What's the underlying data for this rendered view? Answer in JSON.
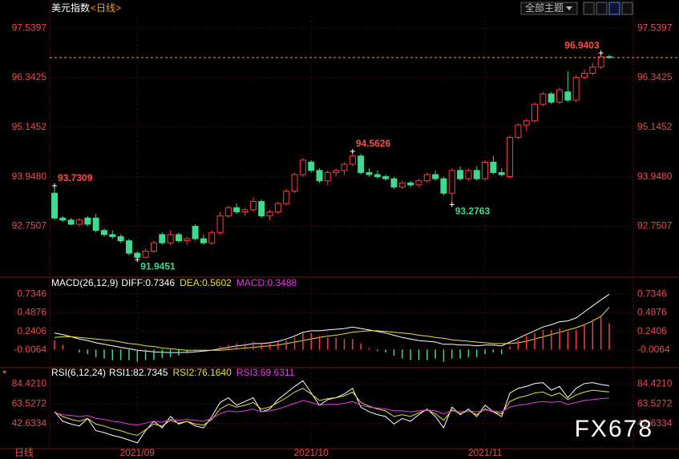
{
  "header": {
    "theme": "全部主题",
    "footer": "日线",
    "watermark": "FX678"
  },
  "chart_data": [
    {
      "type": "candlestick",
      "title": "美元指数",
      "subtitle": "<日线>",
      "up_color": "#ff3b3b",
      "down_color": "#3fd98f",
      "ylim": [
        91.54,
        97.95
      ],
      "yticks": [
        97.5397,
        96.3425,
        95.1452,
        {
          "value": 93.948,
          "label": "93.9480"
        },
        92.7507
      ],
      "grid": true,
      "xticks": [
        {
          "value": 10,
          "label": "2021/09"
        },
        {
          "value": 31,
          "label": "2021/10"
        },
        {
          "value": 52,
          "label": "2021/11"
        }
      ],
      "ohlc": [
        [
          93.55,
          93.7309,
          92.9,
          92.95
        ],
        [
          92.95,
          93.0,
          92.85,
          92.9
        ],
        [
          92.9,
          92.95,
          92.78,
          92.8
        ],
        [
          92.8,
          92.95,
          92.75,
          92.9
        ],
        [
          92.95,
          93.0,
          92.75,
          92.8
        ],
        [
          92.95,
          93.05,
          92.6,
          92.65
        ],
        [
          92.65,
          92.7,
          92.5,
          92.55
        ],
        [
          92.55,
          92.65,
          92.45,
          92.5
        ],
        [
          92.5,
          92.55,
          92.35,
          92.4
        ],
        [
          92.4,
          92.45,
          92.05,
          92.1
        ],
        [
          92.1,
          92.15,
          91.9451,
          92.0
        ],
        [
          92.0,
          92.2,
          91.98,
          92.15
        ],
        [
          92.15,
          92.4,
          92.1,
          92.35
        ],
        [
          92.55,
          92.6,
          92.3,
          92.35
        ],
        [
          92.35,
          92.65,
          92.3,
          92.55
        ],
        [
          92.55,
          92.6,
          92.35,
          92.4
        ],
        [
          92.4,
          92.5,
          92.3,
          92.45
        ],
        [
          92.75,
          92.8,
          92.4,
          92.45
        ],
        [
          92.45,
          92.55,
          92.3,
          92.35
        ],
        [
          92.35,
          92.65,
          92.3,
          92.6
        ],
        [
          92.6,
          93.1,
          92.55,
          93.0
        ],
        [
          93.0,
          93.25,
          92.95,
          93.2
        ],
        [
          93.2,
          93.3,
          93.05,
          93.1
        ],
        [
          93.1,
          93.2,
          93.0,
          93.15
        ],
        [
          93.15,
          93.45,
          93.1,
          93.35
        ],
        [
          93.35,
          93.4,
          92.95,
          93.0
        ],
        [
          93.0,
          93.15,
          92.9,
          93.1
        ],
        [
          93.1,
          93.35,
          93.05,
          93.3
        ],
        [
          93.3,
          93.65,
          93.25,
          93.6
        ],
        [
          93.6,
          94.05,
          93.55,
          94.0
        ],
        [
          94.0,
          94.4,
          93.95,
          94.35
        ],
        [
          94.3,
          94.35,
          94.05,
          94.1
        ],
        [
          94.1,
          94.15,
          93.8,
          93.85
        ],
        [
          93.85,
          94.1,
          93.75,
          94.05
        ],
        [
          94.05,
          94.15,
          93.95,
          94.1
        ],
        [
          94.1,
          94.3,
          94.0,
          94.25
        ],
        [
          94.25,
          94.5626,
          94.2,
          94.45
        ],
        [
          94.45,
          94.5,
          94.0,
          94.05
        ],
        [
          94.05,
          94.15,
          93.95,
          94.0
        ],
        [
          94.0,
          94.1,
          93.9,
          93.95
        ],
        [
          93.95,
          94.0,
          93.85,
          93.9
        ],
        [
          93.9,
          93.95,
          93.65,
          93.7
        ],
        [
          93.7,
          93.85,
          93.65,
          93.8
        ],
        [
          93.8,
          93.85,
          93.7,
          93.75
        ],
        [
          93.75,
          93.9,
          93.7,
          93.85
        ],
        [
          93.85,
          94.05,
          93.8,
          94.0
        ],
        [
          94.0,
          94.1,
          93.85,
          93.9
        ],
        [
          93.9,
          93.95,
          93.5,
          93.55
        ],
        [
          93.55,
          94.15,
          93.2763,
          94.1
        ],
        [
          94.1,
          94.2,
          93.85,
          93.9
        ],
        [
          93.9,
          94.15,
          93.85,
          94.1
        ],
        [
          94.1,
          94.2,
          93.85,
          93.9
        ],
        [
          93.9,
          94.35,
          93.85,
          94.3
        ],
        [
          94.3,
          94.45,
          94.0,
          94.05
        ],
        [
          94.05,
          94.15,
          93.95,
          94.0
        ],
        [
          93.95,
          94.95,
          93.9,
          94.9
        ],
        [
          94.9,
          95.25,
          94.85,
          95.2
        ],
        [
          95.2,
          95.35,
          95.05,
          95.3
        ],
        [
          95.3,
          95.75,
          95.25,
          95.7
        ],
        [
          95.7,
          96.0,
          95.65,
          95.95
        ],
        [
          95.95,
          96.0,
          95.7,
          95.75
        ],
        [
          95.75,
          96.1,
          95.7,
          96.05
        ],
        [
          96.0,
          96.5,
          95.75,
          95.8
        ],
        [
          95.8,
          96.4,
          95.75,
          96.35
        ],
        [
          96.35,
          96.55,
          96.3,
          96.45
        ],
        [
          96.45,
          96.7,
          96.4,
          96.6
        ],
        [
          96.6,
          96.9403,
          96.55,
          96.85
        ],
        [
          96.85,
          96.9,
          96.8,
          96.83
        ]
      ],
      "high_labels": [
        {
          "index": 0,
          "value": 93.7309
        },
        {
          "index": 36,
          "value": 94.5626
        },
        {
          "index": 66,
          "value": 96.9403
        }
      ],
      "low_labels": [
        {
          "index": 10,
          "value": 91.9451
        },
        {
          "index": 48,
          "value": 93.2763
        }
      ]
    },
    {
      "type": "line",
      "title": "MACD(26,12,9)",
      "ylim": [
        -0.23,
        0.94
      ],
      "yticks": [
        0.7346,
        0.4876,
        0.2406,
        -0.0064
      ],
      "series": [
        {
          "name": "DIFF:0.7346",
          "color": "#ffffff",
          "values": [
            0.22,
            0.2,
            0.17,
            0.14,
            0.12,
            0.09,
            0.07,
            0.05,
            0.03,
            0.01,
            -0.01,
            -0.02,
            -0.03,
            -0.035,
            -0.04,
            -0.04,
            -0.035,
            -0.03,
            -0.02,
            -0.01,
            0.01,
            0.03,
            0.05,
            0.06,
            0.08,
            0.08,
            0.09,
            0.11,
            0.14,
            0.18,
            0.23,
            0.25,
            0.25,
            0.26,
            0.27,
            0.28,
            0.3,
            0.28,
            0.26,
            0.24,
            0.22,
            0.19,
            0.16,
            0.14,
            0.12,
            0.11,
            0.1,
            0.07,
            0.07,
            0.06,
            0.06,
            0.05,
            0.06,
            0.06,
            0.05,
            0.1,
            0.15,
            0.2,
            0.25,
            0.3,
            0.33,
            0.37,
            0.38,
            0.42,
            0.5,
            0.58,
            0.66,
            0.7346
          ]
        },
        {
          "name": "DEA:0.5602",
          "color": "#e8e03a",
          "values": [
            0.16,
            0.17,
            0.17,
            0.16,
            0.15,
            0.14,
            0.13,
            0.12,
            0.1,
            0.08,
            0.07,
            0.05,
            0.04,
            0.02,
            0.01,
            0.0,
            -0.01,
            -0.01,
            -0.01,
            -0.01,
            -0.01,
            0.0,
            0.01,
            0.02,
            0.03,
            0.04,
            0.05,
            0.06,
            0.08,
            0.1,
            0.12,
            0.14,
            0.16,
            0.18,
            0.19,
            0.21,
            0.23,
            0.24,
            0.25,
            0.25,
            0.24,
            0.23,
            0.22,
            0.21,
            0.19,
            0.18,
            0.16,
            0.15,
            0.13,
            0.12,
            0.11,
            0.1,
            0.09,
            0.08,
            0.08,
            0.08,
            0.09,
            0.11,
            0.14,
            0.17,
            0.2,
            0.23,
            0.26,
            0.29,
            0.33,
            0.38,
            0.44,
            0.5602
          ]
        },
        {
          "name": "MACD:0.3488",
          "color": "#e040e0",
          "bar": true,
          "up_color": "#ff3b3b",
          "down_color": "#3fd98f",
          "values": [
            0.12,
            0.06,
            0,
            -0.04,
            -0.06,
            -0.1,
            -0.12,
            -0.14,
            -0.14,
            -0.14,
            -0.16,
            -0.14,
            -0.14,
            -0.11,
            -0.1,
            -0.08,
            -0.05,
            -0.04,
            -0.02,
            0,
            0.04,
            0.06,
            0.08,
            0.08,
            0.1,
            0.08,
            0.08,
            0.1,
            0.12,
            0.16,
            0.22,
            0.22,
            0.18,
            0.16,
            0.16,
            0.14,
            0.14,
            0.08,
            0.02,
            -0.02,
            -0.04,
            -0.08,
            -0.12,
            -0.14,
            -0.14,
            -0.14,
            -0.12,
            -0.16,
            -0.12,
            -0.12,
            -0.1,
            -0.1,
            -0.06,
            -0.04,
            -0.06,
            0.04,
            0.12,
            0.18,
            0.22,
            0.26,
            0.26,
            0.28,
            0.24,
            0.26,
            0.34,
            0.4,
            0.44,
            0.3488
          ]
        }
      ]
    },
    {
      "type": "line",
      "title": "RSI(6,12,24)",
      "ylim": [
        16,
        101
      ],
      "yticks": [
        {
          "value": 84.421,
          "label": "84.4210"
        },
        63.5272,
        42.6334
      ],
      "series": [
        {
          "name": "RSI1:82.7345",
          "color": "#ffffff",
          "values": [
            55,
            45,
            42,
            40,
            48,
            35,
            33,
            30,
            28,
            25,
            22,
            35,
            45,
            38,
            50,
            42,
            45,
            40,
            38,
            50,
            65,
            70,
            62,
            66,
            70,
            55,
            58,
            68,
            75,
            82,
            88,
            75,
            62,
            68,
            70,
            74,
            80,
            60,
            55,
            52,
            50,
            42,
            48,
            45,
            52,
            58,
            50,
            38,
            60,
            52,
            58,
            50,
            62,
            55,
            50,
            75,
            80,
            82,
            85,
            86,
            78,
            82,
            70,
            80,
            85,
            86,
            84,
            82.7345
          ]
        },
        {
          "name": "RSI2:76.1640",
          "color": "#e8e03a",
          "values": [
            55,
            50,
            47,
            45,
            48,
            42,
            40,
            37,
            35,
            32,
            30,
            36,
            42,
            40,
            46,
            43,
            45,
            42,
            41,
            47,
            58,
            63,
            60,
            62,
            65,
            58,
            60,
            65,
            70,
            76,
            80,
            74,
            67,
            69,
            70,
            72,
            76,
            65,
            61,
            58,
            56,
            50,
            52,
            50,
            54,
            57,
            53,
            46,
            57,
            53,
            56,
            52,
            58,
            55,
            53,
            66,
            70,
            72,
            75,
            76,
            72,
            75,
            68,
            73,
            76,
            78,
            77,
            76.164
          ]
        },
        {
          "name": "RSI3:69.6311",
          "color": "#e040e0",
          "values": [
            54,
            52,
            51,
            50,
            51,
            48,
            47,
            45,
            44,
            42,
            41,
            43,
            45,
            44,
            47,
            46,
            47,
            46,
            45,
            48,
            53,
            56,
            55,
            56,
            58,
            55,
            56,
            58,
            61,
            64,
            67,
            65,
            62,
            63,
            63,
            64,
            66,
            62,
            60,
            59,
            58,
            56,
            56,
            55,
            56,
            57,
            56,
            53,
            56,
            55,
            56,
            55,
            57,
            56,
            55,
            60,
            62,
            63,
            65,
            66,
            65,
            66,
            63,
            65,
            67,
            68,
            69,
            69.6311
          ]
        }
      ]
    }
  ]
}
